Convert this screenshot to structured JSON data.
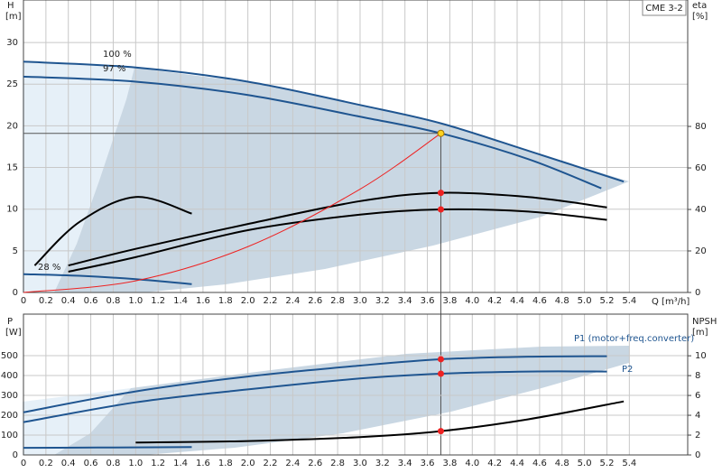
{
  "chart_data": [
    {
      "type": "line",
      "badge": "CME 3-2",
      "y_label": "H",
      "y_unit": "[m]",
      "y2_label": "eta",
      "y2_unit": "[%]",
      "x_label": "Q [m³/h]",
      "xlim": [
        0,
        5.92
      ],
      "ylim": [
        0,
        35.1
      ],
      "y2lim": [
        0,
        140.9
      ],
      "xticks": [
        0,
        0.2,
        0.4,
        0.6,
        0.8,
        {
          "value": 1,
          "label": "1.0"
        },
        1.2,
        1.4,
        1.6,
        1.8,
        {
          "value": 2,
          "label": "2.0"
        },
        2.2,
        2.4,
        2.6,
        2.8,
        {
          "value": 3,
          "label": "3.0"
        },
        3.2,
        3.4,
        3.6,
        3.8,
        {
          "value": 4,
          "label": "4.0"
        },
        4.2,
        4.4,
        4.6,
        4.8,
        {
          "value": 5,
          "label": "5.0"
        },
        5.2,
        5.4
      ],
      "yticks": [
        0,
        5,
        10,
        15,
        20,
        25,
        30
      ],
      "y2ticks": [
        0,
        20,
        40,
        60,
        80
      ],
      "grid": true,
      "series": [
        {
          "name": "100 %",
          "color": "#1f5590",
          "x": [
            0,
            1,
            2,
            3,
            3.72,
            4.5,
            5.35
          ],
          "values": [
            27.7,
            27,
            25.3,
            22.5,
            20.3,
            17,
            13.3
          ]
        },
        {
          "name": "97 %",
          "color": "#1f5590",
          "x": [
            0,
            1,
            2,
            3,
            3.72,
            4.5,
            5.15
          ],
          "values": [
            25.9,
            25.3,
            23.7,
            21.1,
            19.1,
            16,
            12.5
          ]
        },
        {
          "name": "28 %",
          "color": "#1f5590",
          "x": [
            0,
            0.5,
            1,
            1.5
          ],
          "values": [
            2.2,
            2,
            1.6,
            1
          ]
        },
        {
          "color": "#000000",
          "axis": "y2",
          "x": [
            0.4,
            1,
            2,
            3,
            3.72,
            4.5,
            5.2
          ],
          "values": [
            13,
            21,
            33,
            44,
            48,
            46,
            41
          ]
        },
        {
          "color": "#000000",
          "axis": "y2",
          "x": [
            0.4,
            1,
            2,
            3,
            3.72,
            4.5,
            5.2
          ],
          "values": [
            10,
            17,
            30,
            37.5,
            40,
            39,
            35
          ]
        },
        {
          "color": "#000000",
          "axis": "y2",
          "x": [
            0.1,
            0.5,
            1,
            1.5
          ],
          "values": [
            13,
            34,
            46,
            38
          ]
        },
        {
          "color": "#ee2222",
          "x": [
            0,
            1,
            2,
            3,
            3.72
          ],
          "values": [
            0,
            1.4,
            5.5,
            12.4,
            19.1
          ]
        }
      ],
      "markers": [
        {
          "x": 3.72,
          "y": 19.1,
          "color": "#ffd21f"
        },
        {
          "x": 3.72,
          "y": 48,
          "axis": "y2",
          "color": "#ee2222"
        },
        {
          "x": 3.72,
          "y": 40,
          "axis": "y2",
          "color": "#ee2222"
        }
      ]
    },
    {
      "type": "line",
      "y_label": "P",
      "y_unit": "[W]",
      "y2_label": "NPSH",
      "y2_unit": "[m]",
      "xlim": [
        0,
        5.92
      ],
      "ylim": [
        0,
        709
      ],
      "y2lim": [
        0,
        14.2
      ],
      "xticks": [
        0,
        0.2,
        0.4,
        0.6,
        0.8,
        {
          "value": 1,
          "label": "1.0"
        },
        1.2,
        1.4,
        1.6,
        1.8,
        {
          "value": 2,
          "label": "2.0"
        },
        2.2,
        2.4,
        2.6,
        2.8,
        {
          "value": 3,
          "label": "3.0"
        },
        3.2,
        3.4,
        3.6,
        3.8,
        {
          "value": 4,
          "label": "4.0"
        },
        4.2,
        4.4,
        4.6,
        4.8,
        {
          "value": 5,
          "label": "5.0"
        },
        5.2,
        5.4
      ],
      "yticks": [
        0,
        100,
        200,
        300,
        400,
        500
      ],
      "y2ticks": [
        0,
        2,
        4,
        6,
        8,
        10
      ],
      "grid": true,
      "series": [
        {
          "name": "P1 (motor+freq.converter)",
          "color": "#1f5590",
          "x": [
            0,
            1,
            2,
            3,
            3.72,
            4.5,
            5.2
          ],
          "values": [
            215,
            320,
            395,
            450,
            482,
            495,
            497
          ]
        },
        {
          "name": "P2",
          "color": "#1f5590",
          "x": [
            0,
            1,
            2,
            3,
            3.72,
            4.5,
            5.2
          ],
          "values": [
            165,
            265,
            330,
            385,
            409,
            420,
            420
          ]
        },
        {
          "color": "#1f5590",
          "x": [
            0,
            0.5,
            1,
            1.5
          ],
          "values": [
            36,
            37,
            38,
            40
          ]
        },
        {
          "color": "#000000",
          "axis": "y2",
          "x": [
            1,
            2,
            3,
            3.72,
            4.5,
            5.35
          ],
          "values": [
            1.25,
            1.4,
            1.8,
            2.4,
            3.6,
            5.4
          ]
        }
      ],
      "markers": [
        {
          "x": 3.72,
          "y": 482,
          "color": "#ee2222"
        },
        {
          "x": 3.72,
          "y": 409,
          "color": "#ee2222"
        },
        {
          "x": 3.72,
          "y": 2.4,
          "axis": "y2",
          "color": "#ee2222"
        }
      ]
    }
  ]
}
